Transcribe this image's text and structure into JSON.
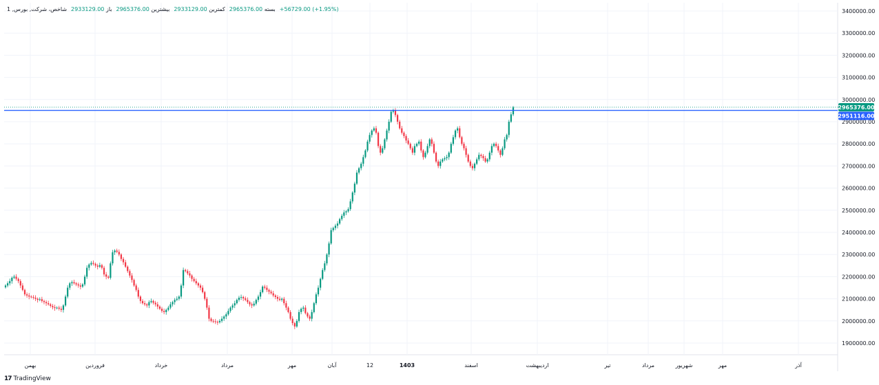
{
  "header": {
    "title": "شاخص، شرکت, بورس, 1",
    "open_label": "باز",
    "open_value": "2933129.00",
    "high_label": "بیشترین",
    "high_value": "2965376.00",
    "low_label": "کمترین",
    "low_value": "2933129.00",
    "close_label": "بسته",
    "close_value": "2965376.00",
    "change": "+56729.00 (+1.95%)"
  },
  "footer": {
    "logo_mark": "17",
    "logo_text": "TradingView"
  },
  "colors": {
    "up": "#089981",
    "down": "#f23645",
    "line": "#2962ff",
    "grid": "#f0f3fa",
    "last_badge": "#089981",
    "line_badge": "#2962ff"
  },
  "chart_data": {
    "type": "candlestick",
    "title": "",
    "xlabel": "",
    "ylabel": "",
    "ylim": [
      1850000,
      3420000
    ],
    "grid": true,
    "yticks": [
      "3400000.00",
      "3300000.00",
      "3200000.00",
      "3100000.00",
      "3000000.00",
      "2900000.00",
      "2800000.00",
      "2700000.00",
      "2600000.00",
      "2500000.00",
      "2400000.00",
      "2300000.00",
      "2200000.00",
      "2100000.00",
      "2000000.00",
      "1900000.00"
    ],
    "xticks": [
      "بهمن",
      "فروردین",
      "خرداد",
      "مرداد",
      "مهر",
      "آبان",
      "12",
      "1403",
      "اسفند",
      "اردیبهشت",
      "تیر",
      "مرداد",
      "شهریور",
      "مهر",
      "آذر"
    ],
    "horizontal_line": {
      "value": 2951116,
      "label": "2951116.00"
    },
    "last_price": {
      "value": 2965376,
      "label": "2965376.00"
    },
    "candles": [
      2160000,
      2170000,
      2180000,
      2195000,
      2200000,
      2190000,
      2180000,
      2160000,
      2140000,
      2120000,
      2115000,
      2110000,
      2108000,
      2105000,
      2100000,
      2095000,
      2098000,
      2090000,
      2085000,
      2080000,
      2075000,
      2068000,
      2062000,
      2058000,
      2060000,
      2055000,
      2050000,
      2070000,
      2110000,
      2150000,
      2170000,
      2175000,
      2170000,
      2165000,
      2160000,
      2155000,
      2165000,
      2200000,
      2240000,
      2255000,
      2262000,
      2258000,
      2250000,
      2245000,
      2252000,
      2240000,
      2210000,
      2200000,
      2195000,
      2260000,
      2310000,
      2318000,
      2312000,
      2300000,
      2280000,
      2265000,
      2245000,
      2225000,
      2205000,
      2185000,
      2160000,
      2140000,
      2110000,
      2090000,
      2080000,
      2075000,
      2070000,
      2085000,
      2090000,
      2082000,
      2075000,
      2065000,
      2055000,
      2045000,
      2040000,
      2050000,
      2060000,
      2075000,
      2085000,
      2095000,
      2100000,
      2110000,
      2160000,
      2230000,
      2225000,
      2215000,
      2205000,
      2190000,
      2180000,
      2170000,
      2160000,
      2150000,
      2130000,
      2100000,
      2060000,
      2010000,
      2000000,
      1998000,
      1996000,
      1994000,
      2000000,
      2010000,
      2020000,
      2030000,
      2045000,
      2060000,
      2070000,
      2080000,
      2095000,
      2105000,
      2108000,
      2102000,
      2095000,
      2085000,
      2075000,
      2070000,
      2078000,
      2095000,
      2110000,
      2130000,
      2155000,
      2150000,
      2140000,
      2132000,
      2125000,
      2115000,
      2108000,
      2100000,
      2095000,
      2100000,
      2080000,
      2060000,
      2040000,
      2010000,
      1990000,
      1975000,
      2000000,
      2040000,
      2055000,
      2060000,
      2035000,
      2020000,
      2010000,
      2040000,
      2080000,
      2120000,
      2150000,
      2190000,
      2230000,
      2260000,
      2300000,
      2350000,
      2410000,
      2420000,
      2430000,
      2440000,
      2460000,
      2475000,
      2490000,
      2495000,
      2505000,
      2540000,
      2580000,
      2620000,
      2670000,
      2690000,
      2710000,
      2740000,
      2770000,
      2810000,
      2840000,
      2860000,
      2870000,
      2850000,
      2790000,
      2760000,
      2780000,
      2820000,
      2860000,
      2900000,
      2945000,
      2950000,
      2930000,
      2900000,
      2870000,
      2850000,
      2835000,
      2815000,
      2800000,
      2780000,
      2760000,
      2790000,
      2800000,
      2810000,
      2770000,
      2740000,
      2760000,
      2790000,
      2820000,
      2800000,
      2760000,
      2720000,
      2700000,
      2720000,
      2730000,
      2735000,
      2740000,
      2760000,
      2800000,
      2830000,
      2860000,
      2870000,
      2830000,
      2800000,
      2780000,
      2750000,
      2720000,
      2700000,
      2690000,
      2710000,
      2730000,
      2750000,
      2745000,
      2735000,
      2720000,
      2730000,
      2760000,
      2790000,
      2800000,
      2790000,
      2770000,
      2750000,
      2780000,
      2820000,
      2840000,
      2900000,
      2933129,
      2965376
    ]
  }
}
